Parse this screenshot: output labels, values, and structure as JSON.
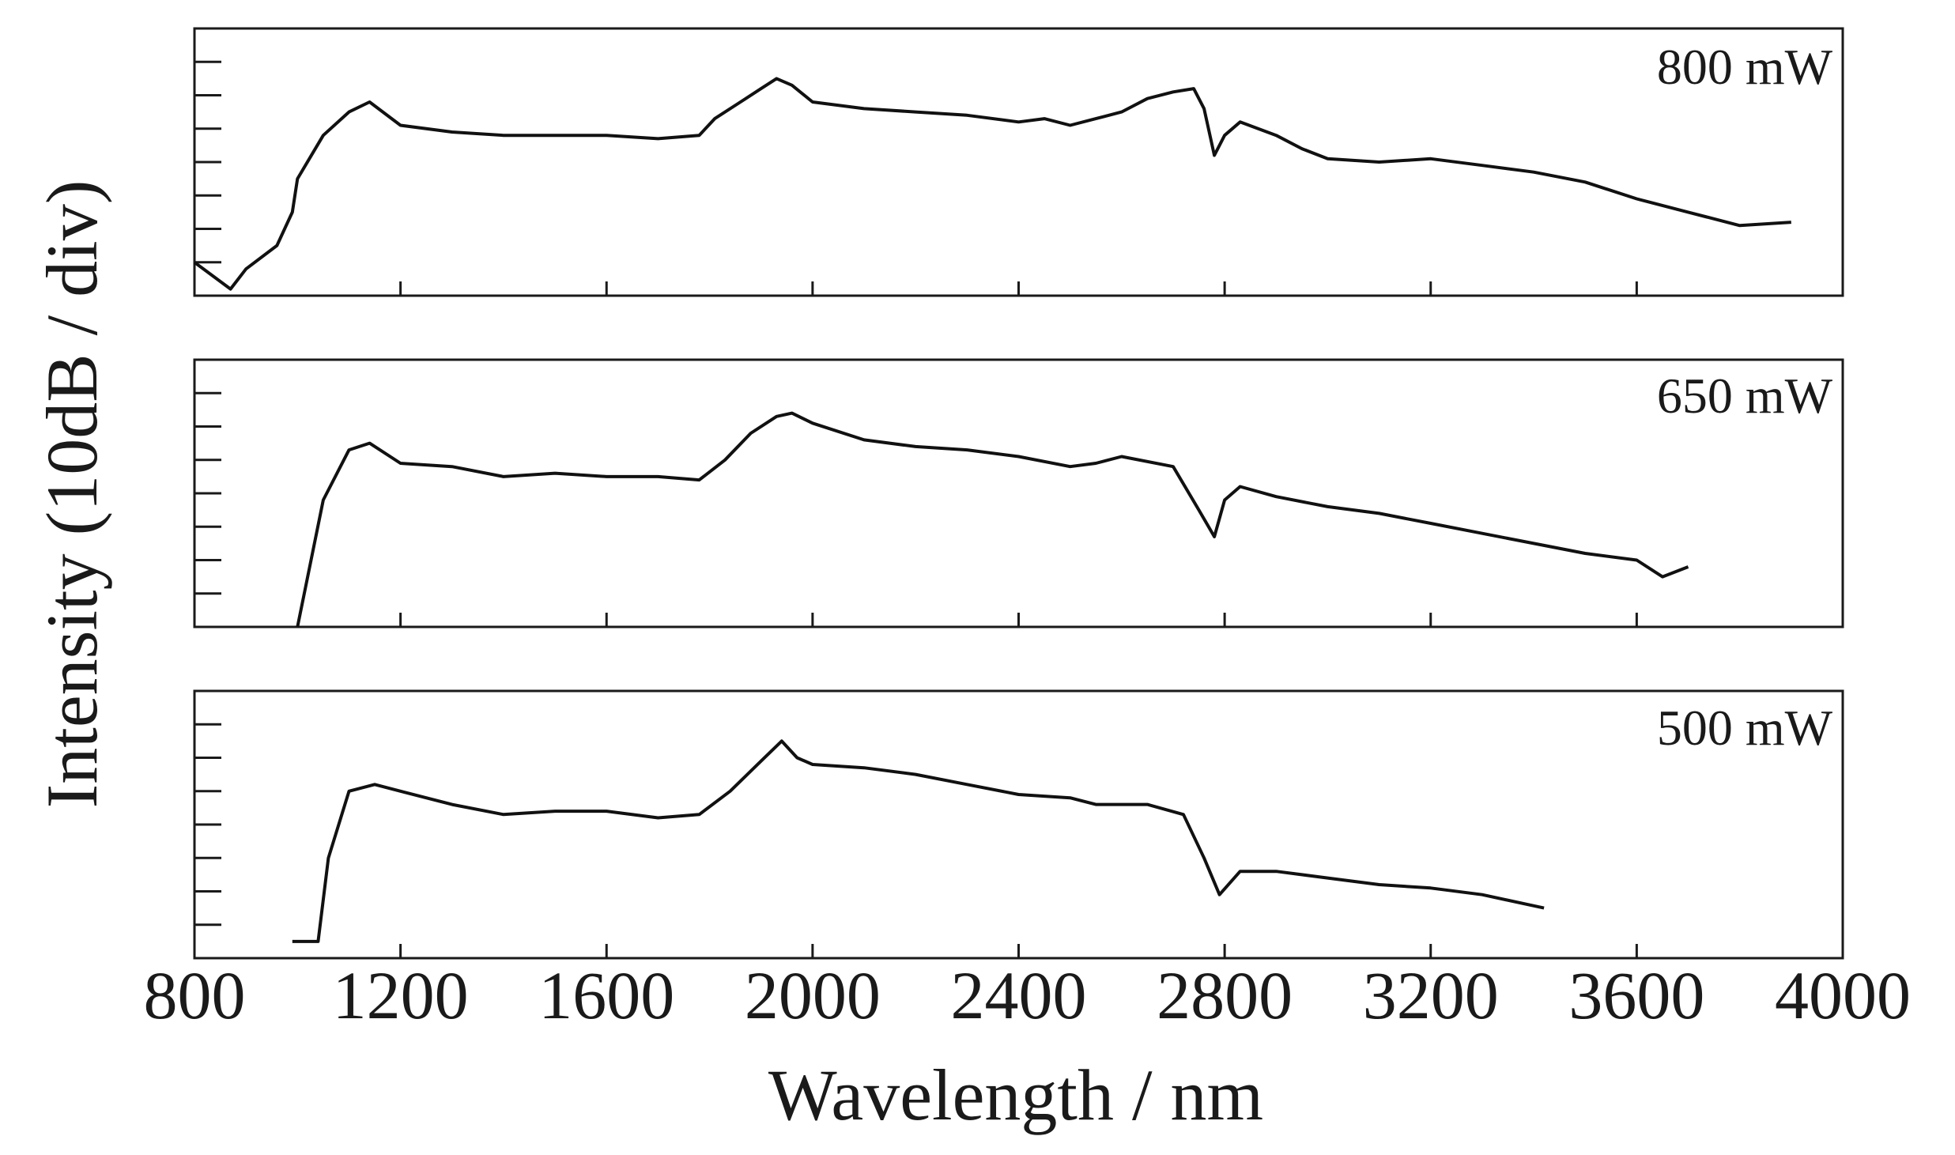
{
  "chart_data": {
    "type": "line",
    "xlabel": "Wavelength / nm",
    "ylabel": "Intensity (10dB / div)",
    "xlim": [
      800,
      4000
    ],
    "x_ticks": [
      800,
      1200,
      1600,
      2000,
      2400,
      2800,
      3200,
      3600,
      4000
    ],
    "y_divisions_per_panel": 8,
    "grid": false,
    "panels": [
      {
        "name": "800 mW",
        "ylim": [
          0,
          8
        ],
        "x": [
          800,
          870,
          900,
          960,
          990,
          1000,
          1050,
          1100,
          1140,
          1200,
          1300,
          1400,
          1500,
          1600,
          1700,
          1780,
          1810,
          1860,
          1900,
          1930,
          1960,
          2000,
          2100,
          2200,
          2300,
          2400,
          2450,
          2500,
          2550,
          2600,
          2650,
          2700,
          2740,
          2760,
          2780,
          2800,
          2830,
          2900,
          2950,
          3000,
          3100,
          3200,
          3300,
          3400,
          3500,
          3600,
          3700,
          3800,
          3900
        ],
        "y": [
          1.0,
          0.2,
          0.8,
          1.5,
          2.5,
          3.5,
          4.8,
          5.5,
          5.8,
          5.1,
          4.9,
          4.8,
          4.8,
          4.8,
          4.7,
          4.8,
          5.3,
          5.8,
          6.2,
          6.5,
          6.3,
          5.8,
          5.6,
          5.5,
          5.4,
          5.2,
          5.3,
          5.1,
          5.3,
          5.5,
          5.9,
          6.1,
          6.2,
          5.6,
          4.2,
          4.8,
          5.2,
          4.8,
          4.4,
          4.1,
          4.0,
          4.1,
          3.9,
          3.7,
          3.4,
          2.9,
          2.5,
          2.1,
          2.2
        ]
      },
      {
        "name": "650 mW",
        "ylim": [
          0,
          8
        ],
        "x": [
          1000,
          1050,
          1100,
          1140,
          1200,
          1300,
          1400,
          1500,
          1600,
          1700,
          1780,
          1830,
          1880,
          1930,
          1960,
          2000,
          2100,
          2200,
          2300,
          2400,
          2500,
          2550,
          2600,
          2700,
          2750,
          2780,
          2800,
          2830,
          2900,
          3000,
          3100,
          3200,
          3300,
          3400,
          3500,
          3600,
          3650,
          3700
        ],
        "y": [
          0.0,
          3.8,
          5.3,
          5.5,
          4.9,
          4.8,
          4.5,
          4.6,
          4.5,
          4.5,
          4.4,
          5.0,
          5.8,
          6.3,
          6.4,
          6.1,
          5.6,
          5.4,
          5.3,
          5.1,
          4.8,
          4.9,
          5.1,
          4.8,
          3.5,
          2.7,
          3.8,
          4.2,
          3.9,
          3.6,
          3.4,
          3.1,
          2.8,
          2.5,
          2.2,
          2.0,
          1.5,
          1.8
        ]
      },
      {
        "name": "500 mW",
        "ylim": [
          0,
          8
        ],
        "x": [
          990,
          1040,
          1060,
          1100,
          1150,
          1200,
          1300,
          1400,
          1500,
          1600,
          1700,
          1780,
          1840,
          1900,
          1940,
          1970,
          2000,
          2100,
          2200,
          2300,
          2400,
          2500,
          2550,
          2650,
          2720,
          2760,
          2790,
          2830,
          2900,
          3000,
          3100,
          3200,
          3300,
          3420
        ],
        "y": [
          0.5,
          0.5,
          3.0,
          5.0,
          5.2,
          5.0,
          4.6,
          4.3,
          4.4,
          4.4,
          4.2,
          4.3,
          5.0,
          5.9,
          6.5,
          6.0,
          5.8,
          5.7,
          5.5,
          5.2,
          4.9,
          4.8,
          4.6,
          4.6,
          4.3,
          3.0,
          1.9,
          2.6,
          2.6,
          2.4,
          2.2,
          2.1,
          1.9,
          1.5
        ]
      }
    ]
  }
}
